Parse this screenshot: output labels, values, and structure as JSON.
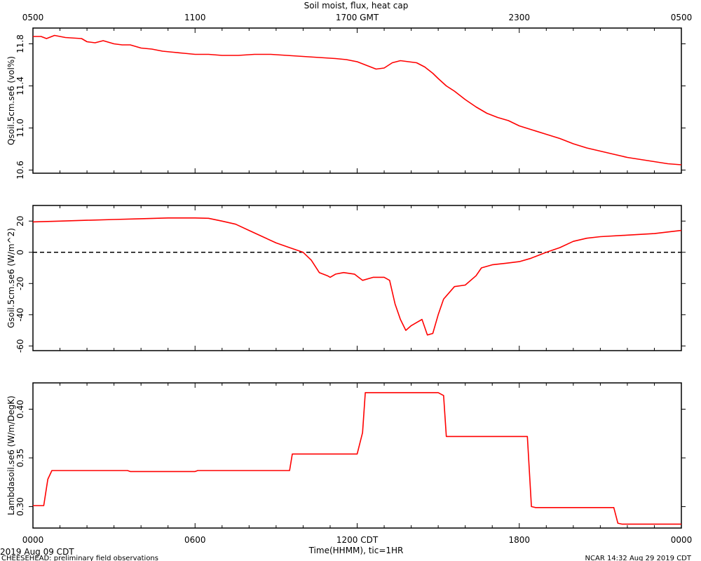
{
  "title": "Soil moist, flux, heat cap",
  "top_axis": {
    "ticks": [
      "0500",
      "1100",
      "1700 GMT",
      "2300",
      "0500"
    ]
  },
  "bottom_axis": {
    "ticks": [
      "0000",
      "0600",
      "1200 CDT",
      "1800",
      "0000"
    ],
    "label": "Time(HHMM), tic=1HR"
  },
  "footer": {
    "date": "2019 Aug 09 CDT",
    "project": "CHEESEHEAD: preliminary field observations",
    "credit": "NCAR 14:32 Aug 29 2019 CDT"
  },
  "series_color": "#ff0000",
  "chart_data": [
    {
      "type": "line",
      "ylabel": "Qsoil.5cm.se6 (vol%)",
      "ylim": [
        10.57,
        11.95
      ],
      "yticks": [
        10.6,
        11.0,
        11.4,
        11.8
      ],
      "ytick_labels": [
        "10.6",
        "11.0",
        "11.4",
        "11.8"
      ],
      "xlim": [
        0,
        24
      ],
      "x": [
        0,
        0.3,
        0.5,
        0.8,
        1.2,
        1.8,
        2.0,
        2.3,
        2.6,
        3.0,
        3.3,
        3.6,
        4.0,
        4.4,
        4.8,
        5.2,
        5.6,
        6.0,
        6.5,
        7.0,
        7.6,
        8.2,
        8.8,
        9.4,
        10.0,
        10.6,
        11.2,
        11.6,
        12.0,
        12.4,
        12.7,
        13.0,
        13.3,
        13.6,
        13.9,
        14.2,
        14.5,
        14.8,
        15.0,
        15.3,
        15.6,
        16.0,
        16.4,
        16.8,
        17.2,
        17.6,
        18.0,
        18.5,
        19.0,
        19.5,
        20.0,
        20.5,
        21.0,
        21.5,
        22.0,
        22.5,
        23.0,
        23.5,
        24.0
      ],
      "y": [
        11.87,
        11.87,
        11.85,
        11.88,
        11.86,
        11.85,
        11.82,
        11.81,
        11.83,
        11.8,
        11.79,
        11.79,
        11.76,
        11.75,
        11.73,
        11.72,
        11.71,
        11.7,
        11.7,
        11.69,
        11.69,
        11.7,
        11.7,
        11.69,
        11.68,
        11.67,
        11.66,
        11.65,
        11.63,
        11.59,
        11.56,
        11.57,
        11.62,
        11.64,
        11.63,
        11.62,
        11.58,
        11.52,
        11.47,
        11.4,
        11.35,
        11.27,
        11.2,
        11.14,
        11.1,
        11.07,
        11.02,
        10.98,
        10.94,
        10.9,
        10.85,
        10.81,
        10.78,
        10.75,
        10.72,
        10.7,
        10.68,
        10.66,
        10.65
      ]
    },
    {
      "type": "line",
      "ylabel": "Gsoil.5cm.se6 (W/m^2)",
      "ylim": [
        -63,
        30
      ],
      "yticks": [
        -60,
        -40,
        -20,
        0,
        20
      ],
      "ytick_labels": [
        "-60",
        "-40",
        "-20",
        "0",
        "20"
      ],
      "reference_line": 0,
      "xlim": [
        0,
        24
      ],
      "x": [
        0,
        1.0,
        2.0,
        3.0,
        4.0,
        5.0,
        6.0,
        6.5,
        7.0,
        7.5,
        8.0,
        8.5,
        9.0,
        9.5,
        10.0,
        10.3,
        10.6,
        10.9,
        11.0,
        11.2,
        11.5,
        11.9,
        12.2,
        12.6,
        13.0,
        13.2,
        13.4,
        13.6,
        13.8,
        14.0,
        14.2,
        14.4,
        14.6,
        14.8,
        15.0,
        15.2,
        15.6,
        16.0,
        16.4,
        16.6,
        17.0,
        17.5,
        18.0,
        18.4,
        19.0,
        19.5,
        20.0,
        20.5,
        21.0,
        22.0,
        23.0,
        24.0
      ],
      "y": [
        19.5,
        20,
        20.5,
        21,
        21.5,
        22,
        22,
        21.8,
        20,
        18,
        14,
        10,
        6,
        3,
        0,
        -5,
        -13,
        -15,
        -16,
        -14,
        -13,
        -14,
        -18,
        -16,
        -16,
        -18,
        -33,
        -43,
        -50,
        -47,
        -45,
        -43,
        -53,
        -52,
        -40,
        -30,
        -22,
        -21,
        -15,
        -10,
        -8,
        -7,
        -6,
        -4,
        0,
        3,
        7,
        9,
        10,
        11,
        12,
        14
      ]
    },
    {
      "type": "line",
      "ylabel": "Lambdasoil.se6 (W/m/DegK)",
      "ylim": [
        0.278,
        0.427
      ],
      "yticks": [
        0.3,
        0.35,
        0.4
      ],
      "ytick_labels": [
        "0.30",
        "0.35",
        "0.40"
      ],
      "xlim": [
        0,
        24
      ],
      "x": [
        0,
        0.4,
        0.55,
        0.7,
        3.5,
        3.6,
        6.0,
        6.1,
        9.5,
        9.6,
        12.0,
        12.2,
        12.3,
        15.0,
        15.2,
        15.3,
        18.3,
        18.45,
        18.6,
        21.5,
        21.65,
        21.8,
        24.0
      ],
      "y": [
        0.301,
        0.301,
        0.328,
        0.337,
        0.337,
        0.336,
        0.336,
        0.337,
        0.337,
        0.354,
        0.354,
        0.376,
        0.417,
        0.417,
        0.414,
        0.372,
        0.372,
        0.3,
        0.299,
        0.299,
        0.283,
        0.282,
        0.282
      ]
    }
  ]
}
